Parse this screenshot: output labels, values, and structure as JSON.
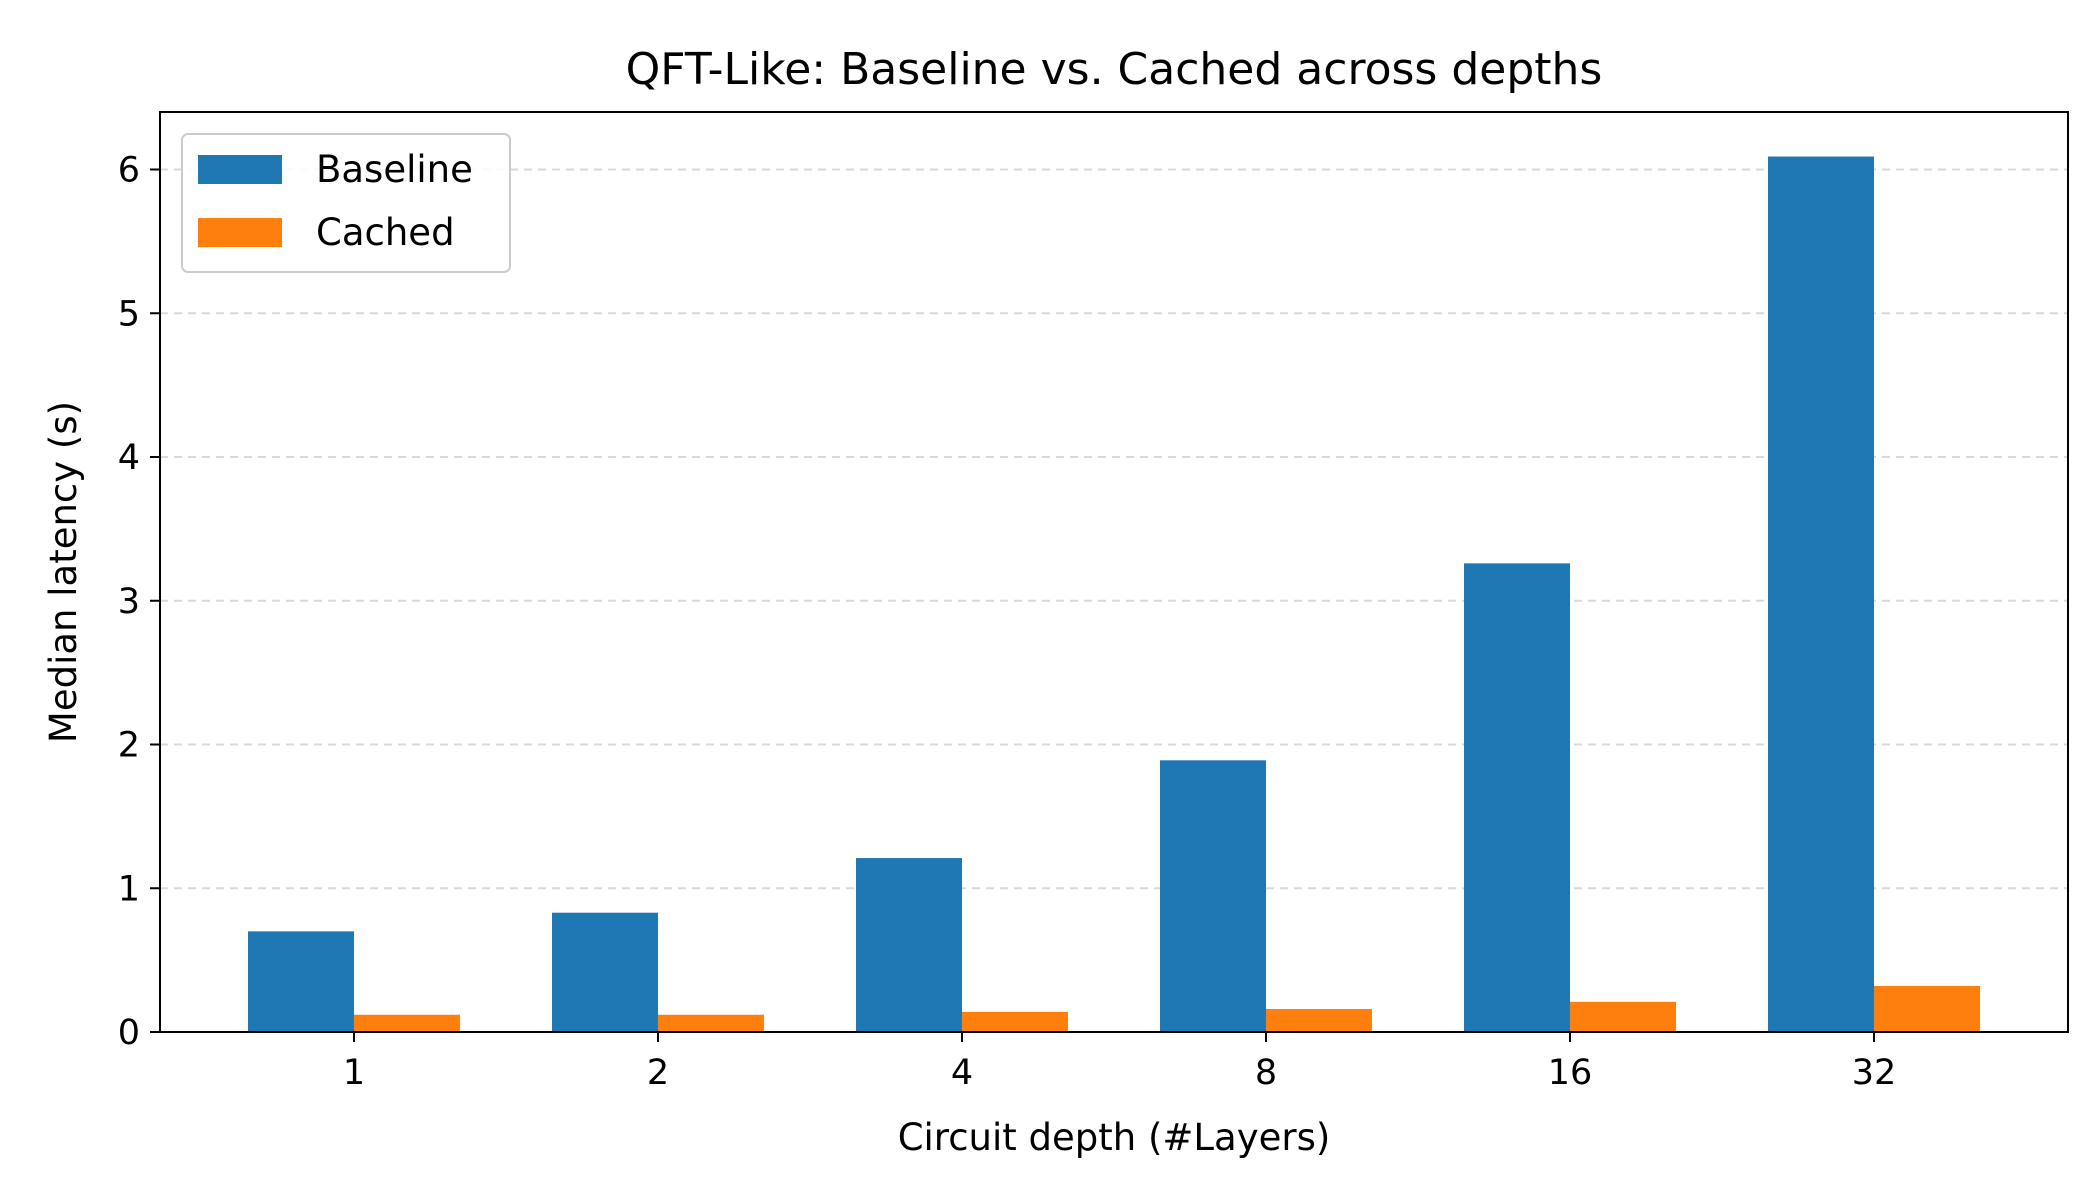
{
  "chart_data": {
    "type": "bar",
    "title": "QFT-Like: Baseline vs. Cached across depths",
    "xlabel": "Circuit depth (#Layers)",
    "ylabel": "Median latency (s)",
    "categories": [
      "1",
      "2",
      "4",
      "8",
      "16",
      "32"
    ],
    "series": [
      {
        "name": "Baseline",
        "color": "#1f77b4",
        "values": [
          0.7,
          0.83,
          1.21,
          1.89,
          3.26,
          6.09
        ]
      },
      {
        "name": "Cached",
        "color": "#ff7f0e",
        "values": [
          0.12,
          0.12,
          0.14,
          0.16,
          0.21,
          0.32
        ]
      }
    ],
    "ylim": [
      0,
      6.4
    ],
    "yticks": [
      0,
      1,
      2,
      3,
      4,
      5,
      6
    ],
    "grid": "y-dashed",
    "legend_position": "top-left"
  }
}
